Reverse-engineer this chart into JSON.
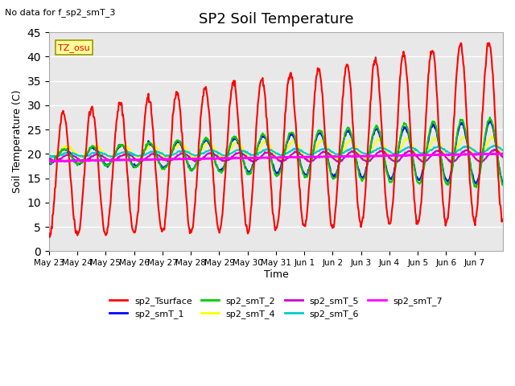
{
  "title": "SP2 Soil Temperature",
  "ylabel": "Soil Temperature (C)",
  "xlabel": "Time",
  "note": "No data for f_sp2_smT_3",
  "tz_label": "TZ_osu",
  "ylim": [
    0,
    45
  ],
  "background_color": "#ffffff",
  "plot_bg_color": "#e8e8e8",
  "grid_color": "#ffffff",
  "series": {
    "sp2_Tsurface": {
      "color": "#ff0000",
      "lw": 1.5
    },
    "sp2_smT_1": {
      "color": "#0000ff",
      "lw": 1.5
    },
    "sp2_smT_2": {
      "color": "#00cc00",
      "lw": 1.5
    },
    "sp2_smT_4": {
      "color": "#ffff00",
      "lw": 1.5
    },
    "sp2_smT_5": {
      "color": "#cc00cc",
      "lw": 1.5
    },
    "sp2_smT_6": {
      "color": "#00cccc",
      "lw": 1.5
    },
    "sp2_smT_7": {
      "color": "#ff00ff",
      "lw": 2.0
    }
  },
  "xtick_labels": [
    "May 23",
    "May 24",
    "May 25",
    "May 26",
    "May 27",
    "May 28",
    "May 29",
    "May 30",
    "May 31",
    "Jun 1",
    "Jun 2",
    "Jun 3",
    "Jun 4",
    "Jun 5",
    "Jun 6",
    "Jun 7"
  ],
  "ytick_vals": [
    0,
    5,
    10,
    15,
    20,
    25,
    30,
    35,
    40,
    45
  ],
  "n_days": 16
}
